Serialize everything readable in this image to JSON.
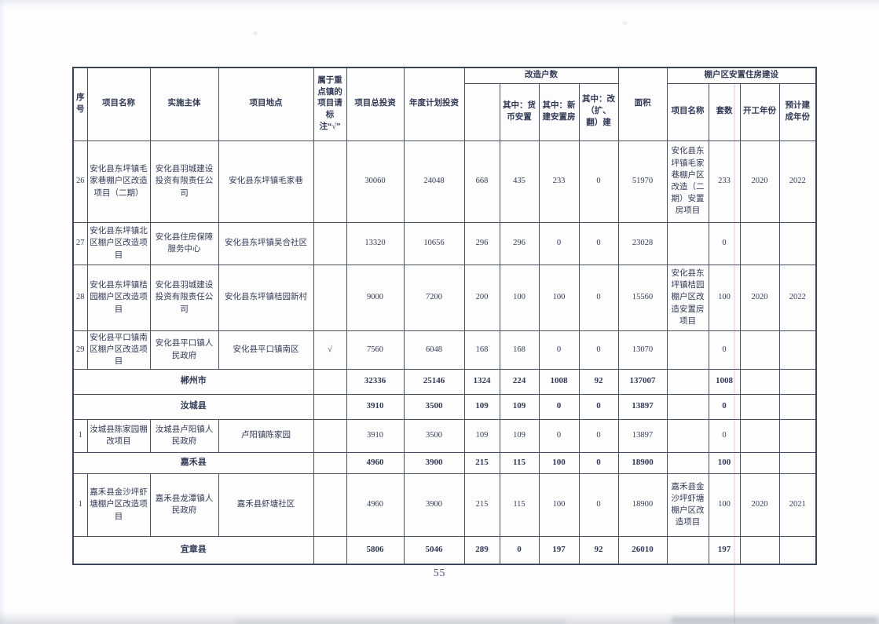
{
  "page_number": "55",
  "colors": {
    "ink": "#323a55",
    "border": "#4a5064",
    "paper": "#fdfdfe"
  },
  "table": {
    "header_rows": [
      [
        {
          "t": "序号",
          "rs": 2,
          "id": "col-seq"
        },
        {
          "t": "项目名称",
          "rs": 2,
          "id": "col-project-name"
        },
        {
          "t": "实施主体",
          "rs": 2,
          "id": "col-implementer"
        },
        {
          "t": "项目地点",
          "rs": 2,
          "id": "col-location"
        },
        {
          "t": "属于重点镇的项目请标注“√”",
          "rs": 2,
          "id": "col-key-town-mark"
        },
        {
          "t": "项目总投资",
          "rs": 2,
          "id": "col-total-investment"
        },
        {
          "t": "年度计划投资",
          "rs": 2,
          "id": "col-annual-investment"
        },
        {
          "t": "改造户数",
          "cs": 4,
          "id": "group-renovated-households"
        },
        {
          "t": "面积",
          "rs": 2,
          "id": "col-area"
        },
        {
          "t": "棚户区安置住房建设",
          "cs": 4,
          "id": "group-resettlement-housing"
        }
      ],
      [
        {
          "t": "",
          "id": "col-households-total"
        },
        {
          "t": "其中：货币安置",
          "id": "col-monetary-resettlement"
        },
        {
          "t": "其中：新建安置房",
          "id": "col-new-built-housing"
        },
        {
          "t": "其中：改（扩、翻）建",
          "id": "col-rebuilt"
        },
        {
          "t": "项目名称",
          "id": "col-resettlement-project-name"
        },
        {
          "t": "套数",
          "id": "col-unit-count"
        },
        {
          "t": "开工年份",
          "id": "col-start-year"
        },
        {
          "t": "预计建成年份",
          "id": "col-expected-completion-year"
        }
      ]
    ],
    "rows": [
      {
        "summary": false,
        "cells": [
          {
            "t": "26"
          },
          {
            "t": "安化县东坪镇毛家巷棚户区改造项目（二期）"
          },
          {
            "t": "安化县羽城建设投资有限责任公司"
          },
          {
            "t": "安化县东坪镇毛家巷"
          },
          {
            "t": ""
          },
          {
            "t": "30060"
          },
          {
            "t": "24048"
          },
          {
            "t": "668"
          },
          {
            "t": "435"
          },
          {
            "t": "233"
          },
          {
            "t": "0"
          },
          {
            "t": "51970"
          },
          {
            "t": "安化县东坪镇毛家巷棚户区改造（二期）安置房项目"
          },
          {
            "t": "233"
          },
          {
            "t": "2020"
          },
          {
            "t": "2022"
          }
        ]
      },
      {
        "summary": false,
        "cells": [
          {
            "t": "27"
          },
          {
            "t": "安化县东坪镇北区棚户区改造项目"
          },
          {
            "t": "安化县住房保障服务中心"
          },
          {
            "t": "安化县东坪镇吴合社区"
          },
          {
            "t": ""
          },
          {
            "t": "13320"
          },
          {
            "t": "10656"
          },
          {
            "t": "296"
          },
          {
            "t": "296"
          },
          {
            "t": "0"
          },
          {
            "t": "0"
          },
          {
            "t": "23028"
          },
          {
            "t": ""
          },
          {
            "t": "0"
          },
          {
            "t": ""
          },
          {
            "t": ""
          }
        ]
      },
      {
        "summary": false,
        "cells": [
          {
            "t": "28"
          },
          {
            "t": "安化县东坪镇桔园棚户区改造项目"
          },
          {
            "t": "安化县羽城建设投资有限责任公司"
          },
          {
            "t": "安化县东坪镇桔园新村"
          },
          {
            "t": ""
          },
          {
            "t": "9000"
          },
          {
            "t": "7200"
          },
          {
            "t": "200"
          },
          {
            "t": "100"
          },
          {
            "t": "100"
          },
          {
            "t": "0"
          },
          {
            "t": "15560"
          },
          {
            "t": "安化县东坪镇桔园棚户区改造安置房项目"
          },
          {
            "t": "100"
          },
          {
            "t": "2020"
          },
          {
            "t": "2022"
          }
        ]
      },
      {
        "summary": false,
        "cells": [
          {
            "t": "29"
          },
          {
            "t": "安化县平口镇南区棚户区改造项目"
          },
          {
            "t": "安化县平口镇人民政府"
          },
          {
            "t": "安化县平口镇南区"
          },
          {
            "t": "√"
          },
          {
            "t": "7560"
          },
          {
            "t": "6048"
          },
          {
            "t": "168"
          },
          {
            "t": "168"
          },
          {
            "t": "0"
          },
          {
            "t": "0"
          },
          {
            "t": "13070"
          },
          {
            "t": ""
          },
          {
            "t": "0"
          },
          {
            "t": ""
          },
          {
            "t": ""
          }
        ]
      },
      {
        "summary": true,
        "cells": [
          {
            "t": "郴州市",
            "cs": 4
          },
          {
            "t": ""
          },
          {
            "t": "32336"
          },
          {
            "t": "25146"
          },
          {
            "t": "1324"
          },
          {
            "t": "224"
          },
          {
            "t": "1008"
          },
          {
            "t": "92"
          },
          {
            "t": "137007"
          },
          {
            "t": ""
          },
          {
            "t": "1008"
          },
          {
            "t": ""
          },
          {
            "t": ""
          }
        ]
      },
      {
        "summary": true,
        "cells": [
          {
            "t": "汝城县",
            "cs": 4
          },
          {
            "t": ""
          },
          {
            "t": "3910"
          },
          {
            "t": "3500"
          },
          {
            "t": "109"
          },
          {
            "t": "109"
          },
          {
            "t": "0"
          },
          {
            "t": "0"
          },
          {
            "t": "13897"
          },
          {
            "t": ""
          },
          {
            "t": "0"
          },
          {
            "t": ""
          },
          {
            "t": ""
          }
        ]
      },
      {
        "summary": false,
        "cells": [
          {
            "t": "1"
          },
          {
            "t": "汝城县陈家园棚改项目"
          },
          {
            "t": "汝城县卢阳镇人民政府"
          },
          {
            "t": "卢阳镇陈家园"
          },
          {
            "t": ""
          },
          {
            "t": "3910"
          },
          {
            "t": "3500"
          },
          {
            "t": "109"
          },
          {
            "t": "109"
          },
          {
            "t": "0"
          },
          {
            "t": "0"
          },
          {
            "t": "13897"
          },
          {
            "t": ""
          },
          {
            "t": "0"
          },
          {
            "t": ""
          },
          {
            "t": ""
          }
        ]
      },
      {
        "summary": true,
        "cells": [
          {
            "t": "嘉禾县",
            "cs": 4
          },
          {
            "t": ""
          },
          {
            "t": "4960"
          },
          {
            "t": "3900"
          },
          {
            "t": "215"
          },
          {
            "t": "115"
          },
          {
            "t": "100"
          },
          {
            "t": "0"
          },
          {
            "t": "18900"
          },
          {
            "t": ""
          },
          {
            "t": "100"
          },
          {
            "t": ""
          },
          {
            "t": ""
          }
        ]
      },
      {
        "summary": false,
        "cells": [
          {
            "t": "1"
          },
          {
            "t": "嘉禾县金沙坪虾塘棚户区改造项目"
          },
          {
            "t": "嘉禾县龙潭镇人民政府"
          },
          {
            "t": "嘉禾县虾塘社区"
          },
          {
            "t": ""
          },
          {
            "t": "4960"
          },
          {
            "t": "3900"
          },
          {
            "t": "215"
          },
          {
            "t": "115"
          },
          {
            "t": "100"
          },
          {
            "t": "0"
          },
          {
            "t": "18900"
          },
          {
            "t": "嘉禾县金沙坪虾塘棚户区改造项目"
          },
          {
            "t": "100"
          },
          {
            "t": "2020"
          },
          {
            "t": "2021"
          }
        ]
      },
      {
        "summary": true,
        "cells": [
          {
            "t": "宜章县",
            "cs": 4
          },
          {
            "t": ""
          },
          {
            "t": "5806"
          },
          {
            "t": "5046"
          },
          {
            "t": "289"
          },
          {
            "t": "0"
          },
          {
            "t": "197"
          },
          {
            "t": "92"
          },
          {
            "t": "26010"
          },
          {
            "t": ""
          },
          {
            "t": "197"
          },
          {
            "t": ""
          },
          {
            "t": ""
          }
        ]
      }
    ]
  }
}
